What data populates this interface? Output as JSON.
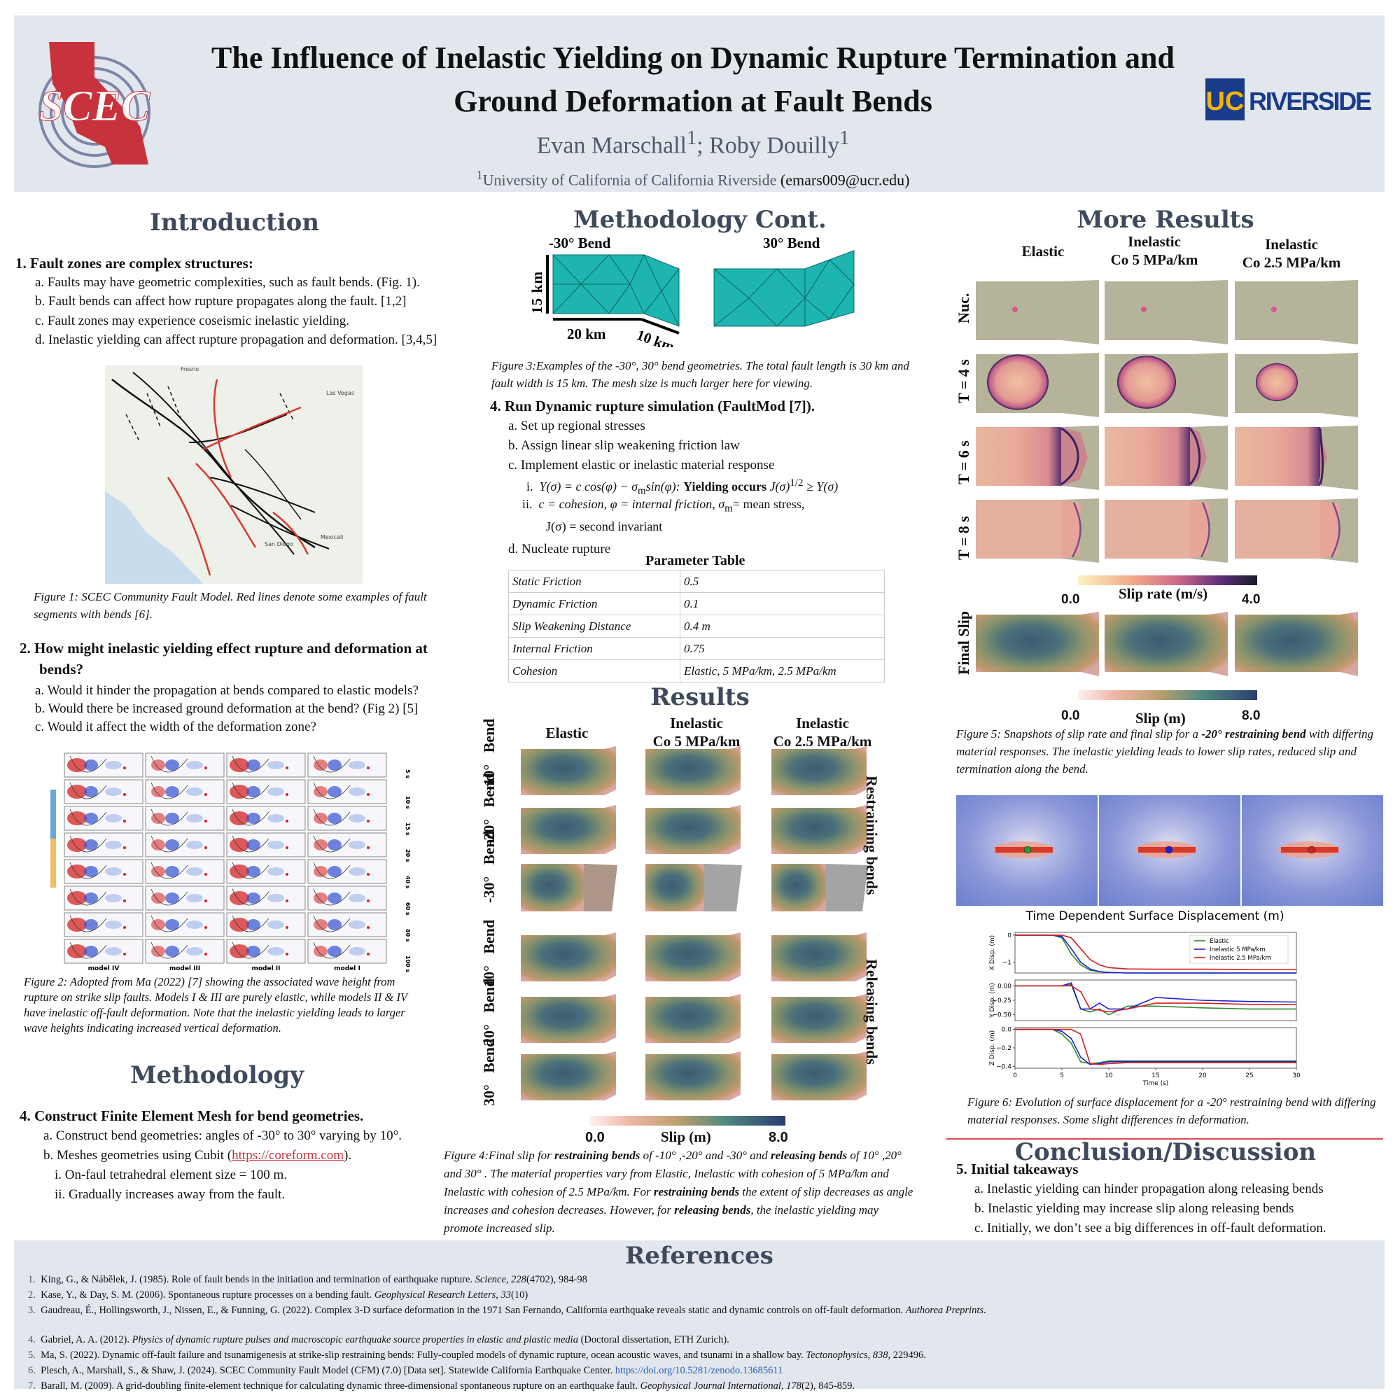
{
  "header": {
    "title_line1": "The Influence of Inelastic Yielding on Dynamic Rupture Termination and",
    "title_line2": "Ground Deformation at Fault Bends",
    "authors": "Evan Marschall1; Roby Douilly1",
    "affiliation": "1University of California of California Riverside",
    "email": "(emars009@ucr.edu)",
    "logo_left": "SCEC",
    "logo_right_uc": "UC",
    "logo_right_text": "RIVERSIDE"
  },
  "intro": {
    "heading": "Introduction",
    "q1": "1.  Fault zones are complex structures:",
    "q1_items": [
      "a.  Faults may have geometric complexities, such as fault bends. (Fig. 1).",
      "b.  Fault bends can affect how rupture propagates along the fault. [1,2]",
      "c.  Fault zones may experience coseismic inelastic yielding.",
      "d.  Inelastic yielding can affect rupture propagation and deformation. [3,4,5]"
    ],
    "fig1_caption": "Figure 1: SCEC Community Fault Model. Red lines denote some examples of fault segments with bends [6].",
    "map_labels": [
      "Fresno",
      "Las Vegas",
      "San Diego",
      "Mexicali"
    ],
    "q2_line1": "2.  How might inelastic yielding effect rupture and deformation at",
    "q2_line2": "bends?",
    "q2_items": [
      "a.  Would it hinder the propagation at bends compared to elastic models?",
      "b.  Would there be increased ground deformation at the bend? (Fig 2) [5]",
      "c.  Would it affect the width of the deformation zone?"
    ],
    "fig2_models": [
      "model IV",
      "model III",
      "model II",
      "model I"
    ],
    "fig2_times": [
      "5 s",
      "10 s",
      "15 s",
      "20 s",
      "40 s",
      "60 s",
      "80 s",
      "100 s"
    ],
    "fig2_caption": "Figure  2: Adopted from Ma (2022) [7] showing the associated wave height from rupture on strike slip faults. Models I & III are purely elastic, while models II & IV have inelastic off-fault deformation. Note that the inelastic yielding leads to larger wave heights indicating increased vertical deformation."
  },
  "methodology": {
    "heading": "Methodology",
    "step": "4.  Construct Finite Element Mesh for bend geometries.",
    "items": [
      "a.  Construct bend geometries: angles of -30° to 30° varying by 10°.",
      "b.  Meshes geometries using Cubit (",
      "i.  On-faul tetrahedral element size  = 100 m.",
      "ii.  Gradually increases away from the fault."
    ],
    "link": "https://coreform.com",
    "link_tail": ")."
  },
  "method_cont": {
    "heading": "Methodology Cont.",
    "label_neg": "-30° Bend",
    "label_pos": "30° Bend",
    "dim_15": "15 km",
    "dim_20": "20 km",
    "dim_10": "10 km",
    "fig3_caption": "Figure 3:Examples of the -30°, 30°  bend geometries. The total fault length is 30 km and fault width is 15 km. The mesh size is much larger here for viewing.",
    "step": "4.  Run Dynamic rupture simulation (FaultMod [7]).",
    "items": [
      "a.  Set up regional stresses",
      "b.  Assign  linear slip weakening friction law",
      "c.  Implement elastic or inelastic material response",
      "d.  Nucleate rupture"
    ],
    "eq_i_label": "i.",
    "eq_i_a": "Y(σ) = c cos(φ) − σ",
    "eq_i_sub": "m",
    "eq_i_b": "sin(φ): ",
    "eq_i_bold": "Yielding occurs ",
    "eq_i_c": "J(σ)",
    "eq_i_sup": "1/2",
    "eq_i_d": " ≥ Y(σ)",
    "eq_ii_label": "ii.",
    "eq_ii_a": "c = cohesion, φ = internal friction, σ",
    "eq_ii_sub": "m",
    "eq_ii_b": "= mean stress,",
    "eq_ii_c": "J(σ) = second invariant",
    "table_title": "Parameter Table",
    "table": [
      [
        "Static Friction",
        "0.5"
      ],
      [
        "Dynamic Friction",
        "0.1"
      ],
      [
        "Slip Weakening Distance",
        "0.4 m"
      ],
      [
        "Internal Friction",
        "0.75"
      ],
      [
        "Cohesion",
        "Elastic, 5 MPa/km, 2.5 MPa/km"
      ]
    ]
  },
  "results": {
    "heading": "Results",
    "col_elastic": "Elastic",
    "col_in5_1": "Inelastic",
    "col_in5_2": "Co 5 MPa/km",
    "col_in25_1": "Inelastic",
    "col_in25_2": "Co 2.5 MPa/km",
    "rows": [
      {
        "angle": "-10°",
        "bend": "Bend"
      },
      {
        "angle": "-20°",
        "bend": "Bend"
      },
      {
        "angle": "-30°",
        "bend": "Bend"
      },
      {
        "angle": "10°",
        "bend": "Bend"
      },
      {
        "angle": "20°",
        "bend": "Bend"
      },
      {
        "angle": "30°",
        "bend": "Bend"
      }
    ],
    "side_restraining": "Restraining bends",
    "side_releasing": "Releasing  bends",
    "cb_min": "0.0",
    "cb_label": "Slip (m)",
    "cb_max": "8.0",
    "fig4_a": "Figure 4:Final slip for ",
    "fig4_b": "restraining bends",
    "fig4_c": " of  -10° ,-20°  and -30° and ",
    "fig4_d": "releasing bends",
    "fig4_e": " of 10° ,20°  and 30° . The material properties vary from Elastic, Inelastic with cohesion of 5 MPa/km and Inelastic with cohesion of 2.5 MPa/km. For ",
    "fig4_f": "restraining bends",
    "fig4_g": " the extent of slip decreases as angle increases and cohesion decreases. However, for ",
    "fig4_h": "releasing bends",
    "fig4_i": ", the inelastic yielding may promote increased slip."
  },
  "more_results": {
    "heading": "More Results",
    "col_elastic": "Elastic",
    "col_in5_1": "Inelastic",
    "col_in5_2": "Co 5 MPa/km",
    "col_in25_1": "Inelastic",
    "col_in25_2": "Co 2.5 MPa/km",
    "rows": [
      "Nuc.",
      "T = 4 s",
      "T = 6 s",
      "T = 8 s"
    ],
    "sr_min": "0.0",
    "sr_label": "Slip rate (m/s)",
    "sr_max": "4.0",
    "final_slip": "Final Slip",
    "slip_min": "0.0",
    "slip_label": "Slip (m)",
    "slip_max": "8.0",
    "fig5_a": "Figure 5: Snapshots of slip rate and final slip for a ",
    "fig5_b": "-20° restraining bend",
    "fig5_c": " with differing material responses. The inelastic yielding leads to lower slip rates, reduced slip and termination along the bend.",
    "fig6_caption": "Figure 6: Evolution of surface displacement for a -20° restraining bend with differing material responses. Some slight differences in deformation."
  },
  "chart_data": {
    "type": "line",
    "title": "Time Dependent Surface Displacement (m)",
    "xlabel": "Time (s)",
    "xlim": [
      0,
      30
    ],
    "xticks": [
      "0",
      "5",
      "10",
      "15",
      "20",
      "25",
      "30"
    ],
    "x": [
      0,
      4,
      5,
      6,
      7,
      8,
      9,
      10,
      12,
      15,
      20,
      25,
      30
    ],
    "panels": [
      {
        "ylabel": "X Disp. (m)",
        "yticks": [
          "0",
          "−1"
        ],
        "ylim": [
          -1.4,
          0.1
        ],
        "series": [
          {
            "name": "Elastic",
            "color": "#2e8b2e",
            "values": [
              0,
              0,
              -0.1,
              -0.7,
              -1.1,
              -1.3,
              -1.35,
              -1.38,
              -1.4,
              -1.4,
              -1.4,
              -1.4,
              -1.4
            ]
          },
          {
            "name": "Inelastic 5 MPa/km",
            "color": "#1f1fd6",
            "values": [
              0,
              0,
              -0.05,
              -0.5,
              -1.0,
              -1.25,
              -1.35,
              -1.38,
              -1.4,
              -1.4,
              -1.4,
              -1.4,
              -1.4
            ]
          },
          {
            "name": "Inelastic 2.5 MPa/km",
            "color": "#d61f1f",
            "values": [
              0,
              0,
              0,
              -0.1,
              -0.5,
              -0.9,
              -1.1,
              -1.2,
              -1.25,
              -1.26,
              -1.26,
              -1.27,
              -1.27
            ]
          }
        ]
      },
      {
        "ylabel": "Y Disp. (m)",
        "yticks": [
          "0.00",
          "−0.25",
          "−0.50"
        ],
        "ylim": [
          -0.6,
          0.1
        ],
        "series": [
          {
            "name": "Elastic",
            "color": "#2e8b2e",
            "values": [
              0,
              0,
              0,
              0.02,
              -0.4,
              -0.45,
              -0.4,
              -0.5,
              -0.35,
              -0.35,
              -0.38,
              -0.4,
              -0.4
            ]
          },
          {
            "name": "Inelastic 5 MPa/km",
            "color": "#1f1fd6",
            "values": [
              0,
              0,
              0,
              0.05,
              -0.4,
              -0.4,
              -0.3,
              -0.4,
              -0.4,
              -0.2,
              -0.25,
              -0.27,
              -0.28
            ]
          },
          {
            "name": "Inelastic 2.5 MPa/km",
            "color": "#d61f1f",
            "values": [
              0,
              0,
              0,
              0.0,
              -0.1,
              -0.4,
              -0.42,
              -0.45,
              -0.4,
              -0.3,
              -0.3,
              -0.32,
              -0.32
            ]
          }
        ]
      },
      {
        "ylabel": "Z Disp. (m)",
        "yticks": [
          "0.0",
          "−0.2",
          "−0.4"
        ],
        "ylim": [
          -0.42,
          0.02
        ],
        "series": [
          {
            "name": "Elastic",
            "color": "#2e8b2e",
            "values": [
              0,
              0,
              -0.05,
              -0.15,
              -0.35,
              -0.37,
              -0.36,
              -0.34,
              -0.34,
              -0.34,
              -0.34,
              -0.34,
              -0.34
            ]
          },
          {
            "name": "Inelastic 5 MPa/km",
            "color": "#1f1fd6",
            "values": [
              0,
              0,
              -0.02,
              -0.1,
              -0.3,
              -0.38,
              -0.37,
              -0.35,
              -0.35,
              -0.35,
              -0.35,
              -0.35,
              -0.35
            ]
          },
          {
            "name": "Inelastic 2.5 MPa/km",
            "color": "#d61f1f",
            "values": [
              0,
              0,
              0,
              0,
              -0.05,
              -0.37,
              -0.38,
              -0.37,
              -0.36,
              -0.36,
              -0.36,
              -0.36,
              -0.36
            ]
          }
        ]
      }
    ]
  },
  "conclusion": {
    "heading": "Conclusion/Discussion",
    "step": "5.  Initial takeaways",
    "items": [
      "a.  Inelastic yielding can hinder propagation along releasing bends",
      "b.  Inelastic yielding may increase slip along releasing bends",
      "c.  Initially, we don’t see a big differences in off-fault deformation."
    ]
  },
  "references": {
    "heading": "References",
    "items": [
      {
        "n": "1.",
        "a": "King, G., & Nábělek, J. (1985). Role of fault bends in the initiation and termination of earthquake rupture. ",
        "i": "Science, 228",
        "b": "(4702), 984-98"
      },
      {
        "n": "2.",
        "a": "Kase, Y., & Day, S. M. (2006). Spontaneous rupture processes on a bending fault. ",
        "i": "Geophysical Research Letters, 33",
        "b": "(10)"
      },
      {
        "n": "3.",
        "a": "Gaudreau, É., Hollingsworth, J., Nissen, E., & Funning, G. (2022). Complex 3-D surface deformation in the 1971 San Fernando, California earthquake reveals static and dynamic controls on off-fault deformation. ",
        "i": "Authorea Preprints",
        "b": "."
      },
      {
        "n": "4.",
        "a": "Gabriel, A. A. (2012). ",
        "i": "Physics of dynamic rupture pulses and macroscopic earthquake source properties in elastic and plastic media",
        "b": " (Doctoral dissertation, ETH Zurich)."
      },
      {
        "n": "5.",
        "a": "Ma, S. (2022). Dynamic off-fault failure and tsunamigenesis at strike-slip restraining bends: Fully-coupled models of dynamic rupture, ocean acoustic waves, and tsunami in a shallow bay. ",
        "i": "Tectonophysics, 838",
        "b": ", 229496."
      },
      {
        "n": "6.",
        "a": "Plesch, A., Marshall, S., & Shaw, J. (2024). SCEC Community Fault Model (CFM) (7.0) [Data set]. Statewide California Earthquake Center. ",
        "i": "",
        "b": "",
        "link": "https://doi.org/10.5281/zenodo.13685611"
      },
      {
        "n": "7.",
        "a": "Barall, M. (2009). A grid-doubling finite-element technique for calculating dynamic three-dimensional spontaneous rupture on an earthquake fault. ",
        "i": "Geophysical Journal International, 178",
        "b": "(2), 845-859."
      }
    ]
  },
  "colors": {
    "header_bg": "#e2e7ee",
    "heading": "#3e4a5c",
    "scec_red": "#c8323c",
    "uc_blue": "#1a3a8c",
    "uc_gold": "#f2b500",
    "mesh": "#1eb4b0",
    "fault_gray": "#b5b49a"
  }
}
